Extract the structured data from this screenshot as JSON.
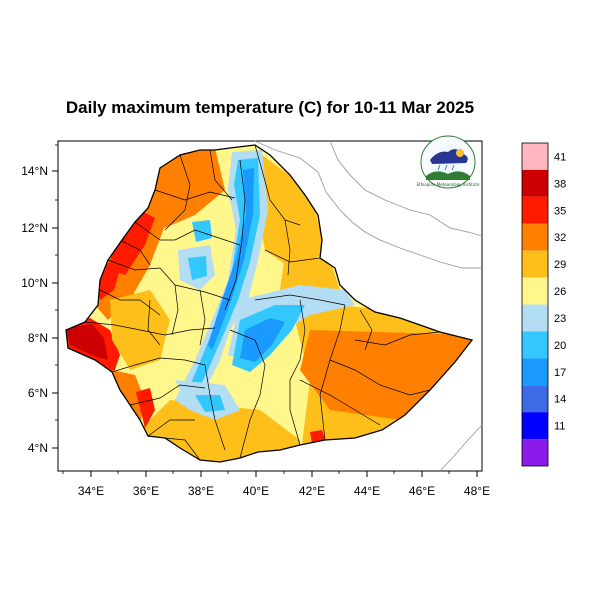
{
  "title": "Daily maximum temperature (C) for 10-11 Mar 2025",
  "map": {
    "lat_ticks": [
      "4°N",
      "6°N",
      "8°N",
      "10°N",
      "12°N",
      "14°N"
    ],
    "lon_ticks": [
      "34°E",
      "36°E",
      "38°E",
      "40°E",
      "42°E",
      "44°E",
      "46°E",
      "48°E"
    ],
    "lon_range": [
      33,
      48.2
    ],
    "lat_range": [
      3.2,
      15
    ]
  },
  "colorbar": {
    "labels": [
      "41",
      "38",
      "35",
      "32",
      "29",
      "26",
      "23",
      "20",
      "17",
      "14",
      "11"
    ],
    "colors": [
      "#ffb6c1",
      "#cc0000",
      "#ff1a00",
      "#ff8000",
      "#ffbf1a",
      "#fff68c",
      "#b3ddf2",
      "#33c7ff",
      "#1a99ff",
      "#3d6be6",
      "#0000ff",
      "#8c1aeb"
    ]
  },
  "logo": {
    "caption": "Ethiopian Meteorology Institute"
  }
}
